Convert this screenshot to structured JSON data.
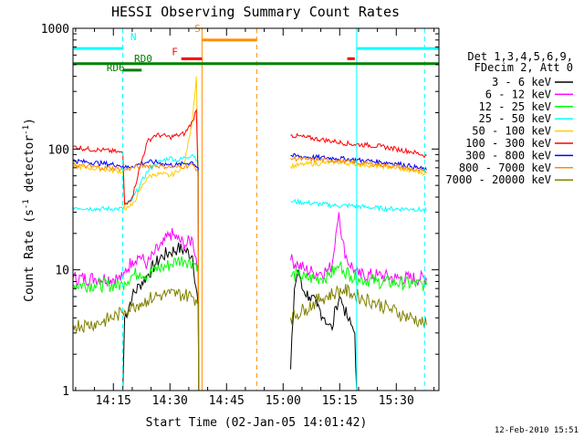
{
  "chart_data": {
    "type": "line",
    "title": "HESSI Observing Summary Count Rates",
    "xlabel": "Start Time (02-Jan-05 14:01:42)",
    "ylabel_main": "Count Rate (s",
    "ylabel_sup1": "-1",
    "ylabel_mid": " detector",
    "ylabel_sup2": "-1",
    "ylabel_end": ")",
    "x_range_minutes": [
      4.3,
      101.3
    ],
    "ylim": [
      1,
      1000
    ],
    "yscale": "log",
    "x_ticks": [
      {
        "m": 15,
        "label": "14:15"
      },
      {
        "m": 30,
        "label": "14:30"
      },
      {
        "m": 45,
        "label": "14:45"
      },
      {
        "m": 60,
        "label": "15:00"
      },
      {
        "m": 75,
        "label": "15:15"
      },
      {
        "m": 90,
        "label": "15:30"
      }
    ],
    "y_ticks": [
      {
        "v": 1,
        "label": "1"
      },
      {
        "v": 10,
        "label": "10"
      },
      {
        "v": 100,
        "label": "100"
      },
      {
        "v": 1000,
        "label": "1000"
      }
    ],
    "legend_header": [
      "Det 1,3,4,5,6,9,",
      "FDecim 2, Att 0"
    ],
    "series": [
      {
        "name": "3 - 6 keV",
        "color": "#000000",
        "points": [
          [
            17.5,
            1
          ],
          [
            18,
            4
          ],
          [
            20,
            6
          ],
          [
            22,
            7.5
          ],
          [
            24,
            9
          ],
          [
            26,
            11
          ],
          [
            28,
            13
          ],
          [
            30,
            14
          ],
          [
            32,
            15
          ],
          [
            34,
            14.5
          ],
          [
            36,
            13
          ],
          [
            37.5,
            5
          ],
          [
            37.6,
            1
          ],
          [
            null,
            null
          ],
          [
            62,
            1.5
          ],
          [
            63,
            7
          ],
          [
            64,
            10
          ],
          [
            65,
            7
          ],
          [
            67,
            6
          ],
          [
            69,
            5
          ],
          [
            71,
            4
          ],
          [
            72,
            3.5
          ],
          [
            73,
            3.2
          ],
          [
            74,
            5
          ],
          [
            75,
            6
          ],
          [
            76,
            5
          ],
          [
            77,
            4
          ],
          [
            78,
            3.5
          ],
          [
            79,
            3
          ],
          [
            79.5,
            1
          ]
        ]
      },
      {
        "name": "6 - 12 keV",
        "color": "#ff00ff",
        "points": [
          [
            4.3,
            8.5
          ],
          [
            10,
            8.5
          ],
          [
            16,
            8.5
          ],
          [
            17.5,
            8.5
          ],
          [
            18,
            9.5
          ],
          [
            20,
            12
          ],
          [
            22,
            13
          ],
          [
            24,
            11
          ],
          [
            26,
            14
          ],
          [
            28,
            16
          ],
          [
            30,
            20
          ],
          [
            32,
            18
          ],
          [
            34,
            16
          ],
          [
            36,
            18
          ],
          [
            37.5,
            10
          ],
          [
            37.6,
            1
          ],
          [
            null,
            null
          ],
          [
            62,
            12
          ],
          [
            64,
            11
          ],
          [
            66,
            10
          ],
          [
            68,
            9.5
          ],
          [
            70,
            9.5
          ],
          [
            72,
            10
          ],
          [
            73,
            11
          ],
          [
            74,
            20
          ],
          [
            74.8,
            30
          ],
          [
            75.5,
            18
          ],
          [
            77,
            12
          ],
          [
            79,
            10
          ],
          [
            80,
            9
          ],
          [
            85,
            9
          ],
          [
            90,
            8.5
          ],
          [
            98,
            8.5
          ]
        ]
      },
      {
        "name": "12 - 25 keV",
        "color": "#00ff00",
        "points": [
          [
            4.3,
            7.5
          ],
          [
            10,
            7.5
          ],
          [
            17.5,
            7.5
          ],
          [
            18,
            8
          ],
          [
            20,
            9
          ],
          [
            22,
            9.5
          ],
          [
            24,
            9
          ],
          [
            26,
            10
          ],
          [
            28,
            10.5
          ],
          [
            30,
            11
          ],
          [
            32,
            12
          ],
          [
            34,
            12
          ],
          [
            36,
            11.5
          ],
          [
            37.5,
            11
          ],
          [
            37.6,
            1
          ],
          [
            null,
            null
          ],
          [
            62,
            9
          ],
          [
            64,
            9
          ],
          [
            66,
            8.5
          ],
          [
            68,
            8.5
          ],
          [
            70,
            8.5
          ],
          [
            72,
            9
          ],
          [
            74,
            10
          ],
          [
            75,
            11
          ],
          [
            76,
            10
          ],
          [
            78,
            9
          ],
          [
            80,
            8.5
          ],
          [
            85,
            8
          ],
          [
            90,
            7.8
          ],
          [
            98,
            7.5
          ]
        ]
      },
      {
        "name": "25 - 50 keV",
        "color": "#00ffff",
        "points": [
          [
            4.3,
            33
          ],
          [
            10,
            32
          ],
          [
            16,
            32
          ],
          [
            17.5,
            32
          ],
          [
            18,
            34
          ],
          [
            20,
            38
          ],
          [
            22,
            50
          ],
          [
            24,
            65
          ],
          [
            26,
            75
          ],
          [
            28,
            80
          ],
          [
            30,
            85
          ],
          [
            32,
            80
          ],
          [
            34,
            85
          ],
          [
            36,
            90
          ],
          [
            37.5,
            80
          ],
          [
            37.6,
            1
          ],
          [
            null,
            null
          ],
          [
            62,
            37
          ],
          [
            66,
            36
          ],
          [
            70,
            35
          ],
          [
            74,
            34
          ],
          [
            78,
            34
          ],
          [
            82,
            33
          ],
          [
            88,
            32
          ],
          [
            94,
            32
          ],
          [
            98,
            31
          ]
        ]
      },
      {
        "name": "50 - 100 keV",
        "color": "#ffcc00",
        "points": [
          [
            4.3,
            72
          ],
          [
            8,
            70
          ],
          [
            12,
            68
          ],
          [
            16,
            66
          ],
          [
            17.5,
            65
          ],
          [
            18,
            32
          ],
          [
            19,
            33
          ],
          [
            20,
            34
          ],
          [
            22,
            45
          ],
          [
            24,
            58
          ],
          [
            26,
            62
          ],
          [
            28,
            62
          ],
          [
            30,
            60
          ],
          [
            32,
            65
          ],
          [
            34,
            80
          ],
          [
            36,
            180
          ],
          [
            37,
            400
          ],
          [
            37.5,
            60
          ],
          [
            37.6,
            1
          ],
          [
            null,
            null
          ],
          [
            62,
            72
          ],
          [
            66,
            75
          ],
          [
            70,
            76
          ],
          [
            74,
            78
          ],
          [
            78,
            76
          ],
          [
            82,
            74
          ],
          [
            86,
            72
          ],
          [
            90,
            70
          ],
          [
            94,
            66
          ],
          [
            98,
            63
          ]
        ]
      },
      {
        "name": "100 - 300 keV",
        "color": "#ff0000",
        "points": [
          [
            4.3,
            105
          ],
          [
            8,
            100
          ],
          [
            12,
            98
          ],
          [
            16,
            95
          ],
          [
            17.5,
            92
          ],
          [
            18,
            35
          ],
          [
            19,
            37
          ],
          [
            20,
            40
          ],
          [
            22,
            70
          ],
          [
            24,
            115
          ],
          [
            26,
            130
          ],
          [
            28,
            130
          ],
          [
            30,
            125
          ],
          [
            32,
            130
          ],
          [
            34,
            135
          ],
          [
            36,
            170
          ],
          [
            37,
            210
          ],
          [
            37.5,
            50
          ],
          [
            37.6,
            1
          ],
          [
            null,
            null
          ],
          [
            62,
            130
          ],
          [
            66,
            125
          ],
          [
            70,
            120
          ],
          [
            74,
            115
          ],
          [
            78,
            110
          ],
          [
            82,
            108
          ],
          [
            86,
            105
          ],
          [
            90,
            100
          ],
          [
            94,
            95
          ],
          [
            98,
            88
          ]
        ]
      },
      {
        "name": "300 - 800 keV",
        "color": "#0000ff",
        "points": [
          [
            4.3,
            80
          ],
          [
            8,
            78
          ],
          [
            12,
            76
          ],
          [
            16,
            74
          ],
          [
            17.5,
            72
          ],
          [
            18,
            70
          ],
          [
            20,
            72
          ],
          [
            22,
            75
          ],
          [
            24,
            78
          ],
          [
            26,
            78
          ],
          [
            28,
            76
          ],
          [
            30,
            74
          ],
          [
            32,
            74
          ],
          [
            34,
            76
          ],
          [
            36,
            78
          ],
          [
            37.5,
            70
          ],
          [
            37.6,
            1
          ],
          [
            null,
            null
          ],
          [
            62,
            88
          ],
          [
            66,
            86
          ],
          [
            70,
            85
          ],
          [
            74,
            84
          ],
          [
            78,
            82
          ],
          [
            82,
            80
          ],
          [
            86,
            78
          ],
          [
            90,
            76
          ],
          [
            94,
            72
          ],
          [
            98,
            67
          ]
        ]
      },
      {
        "name": "800 - 7000 keV",
        "color": "#ff8c00",
        "points": [
          [
            4.3,
            74
          ],
          [
            8,
            72
          ],
          [
            12,
            70
          ],
          [
            16,
            69
          ],
          [
            17.5,
            68
          ],
          [
            18,
            67
          ],
          [
            20,
            70
          ],
          [
            22,
            72
          ],
          [
            24,
            73
          ],
          [
            26,
            73
          ],
          [
            28,
            72
          ],
          [
            30,
            71
          ],
          [
            32,
            71
          ],
          [
            34,
            72
          ],
          [
            36,
            74
          ],
          [
            37.5,
            66
          ],
          [
            37.6,
            1
          ],
          [
            null,
            null
          ],
          [
            62,
            84
          ],
          [
            66,
            82
          ],
          [
            70,
            81
          ],
          [
            74,
            80
          ],
          [
            78,
            78
          ],
          [
            82,
            76
          ],
          [
            86,
            74
          ],
          [
            90,
            72
          ],
          [
            94,
            68
          ],
          [
            98,
            64
          ]
        ]
      },
      {
        "name": "7000 - 20000 keV",
        "color": "#808000",
        "points": [
          [
            4.3,
            3.5
          ],
          [
            8,
            3.5
          ],
          [
            12,
            3.7
          ],
          [
            16,
            4.2
          ],
          [
            17.5,
            4.4
          ],
          [
            18,
            4.6
          ],
          [
            20,
            5
          ],
          [
            22,
            5.3
          ],
          [
            24,
            5.6
          ],
          [
            26,
            6
          ],
          [
            28,
            6.2
          ],
          [
            30,
            6.3
          ],
          [
            32,
            6.3
          ],
          [
            34,
            6.2
          ],
          [
            36,
            6
          ],
          [
            37.5,
            5.5
          ],
          [
            37.6,
            1
          ],
          [
            null,
            null
          ],
          [
            62,
            4
          ],
          [
            66,
            4.8
          ],
          [
            70,
            5.8
          ],
          [
            74,
            6.5
          ],
          [
            76,
            6.8
          ],
          [
            78,
            6.4
          ],
          [
            80,
            6
          ],
          [
            84,
            5.4
          ],
          [
            88,
            4.8
          ],
          [
            92,
            4.2
          ],
          [
            96,
            3.8
          ],
          [
            98,
            3.5
          ]
        ]
      }
    ],
    "vlines": [
      {
        "m": 4.3,
        "color": "#00ffff",
        "style": "solid"
      },
      {
        "m": 17.5,
        "color": "#00ffff",
        "style": "dashed"
      },
      {
        "m": 38.5,
        "color": "#ff8c00",
        "style": "solid"
      },
      {
        "m": 53,
        "color": "#ff8c00",
        "style": "dashed"
      },
      {
        "m": 79.5,
        "color": "#00ffff",
        "style": "solid"
      },
      {
        "m": 97.5,
        "color": "#00ffff",
        "style": "dashed"
      }
    ],
    "flag_bars": [
      {
        "label": "N",
        "color": "#00ffff",
        "y": 680,
        "segments": [
          [
            4.3,
            17.5
          ],
          [
            79.5,
            101.3
          ]
        ],
        "label_m": 19.5,
        "label_v": 800
      },
      {
        "label": "S",
        "color": "#ff8c00",
        "y": 800,
        "segments": [
          [
            38.5,
            53
          ]
        ],
        "label_m": 36.5,
        "label_v": 930
      },
      {
        "label": "F",
        "color": "#ff0000",
        "y": 560,
        "segments": [
          [
            33,
            38.5
          ],
          [
            77,
            79
          ]
        ],
        "label_m": 30.5,
        "label_v": 600
      },
      {
        "label": "RD0",
        "color": "#008000",
        "y": 510,
        "segments": [
          [
            4.3,
            101.3
          ]
        ],
        "label_m": 20.5,
        "label_v": 525
      },
      {
        "label": "RD6",
        "color": "#008000",
        "y": 450,
        "segments": [
          [
            17.5,
            22.5
          ]
        ],
        "label_m": 13.2,
        "label_v": 440
      }
    ]
  },
  "footer": {
    "timestamp": "12-Feb-2010 15:51"
  }
}
